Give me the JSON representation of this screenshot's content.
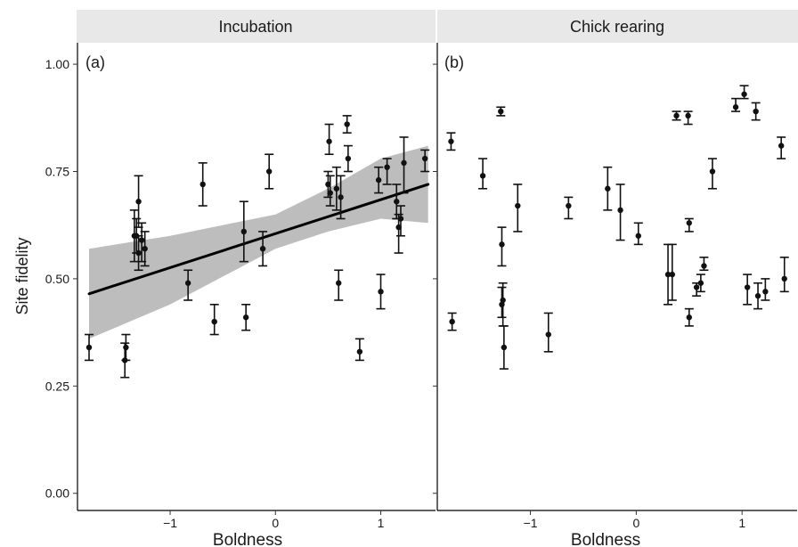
{
  "chart_data": [
    {
      "type": "scatter",
      "panel_strip": "Incubation",
      "tag": "(a)",
      "xlabel": "Boldness",
      "ylabel": "Site fidelity",
      "xlim": [
        -1.88,
        1.52
      ],
      "ylim": [
        -0.04,
        1.05
      ],
      "x_ticks": [
        -1,
        0,
        1
      ],
      "x_tick_labels": [
        "−1",
        "0",
        "1"
      ],
      "y_ticks": [
        0.0,
        0.25,
        0.5,
        0.75,
        1.0
      ],
      "y_tick_labels": [
        "0.00",
        "0.25",
        "0.50",
        "0.75",
        "1.00"
      ],
      "grid": false,
      "points": [
        {
          "x": -1.77,
          "y": 0.34,
          "lo": 0.31,
          "hi": 0.37
        },
        {
          "x": -1.43,
          "y": 0.31,
          "lo": 0.27,
          "hi": 0.35
        },
        {
          "x": -1.42,
          "y": 0.34,
          "lo": 0.31,
          "hi": 0.37
        },
        {
          "x": -1.34,
          "y": 0.6,
          "lo": 0.54,
          "hi": 0.66
        },
        {
          "x": -1.32,
          "y": 0.6,
          "lo": 0.56,
          "hi": 0.64
        },
        {
          "x": -1.3,
          "y": 0.68,
          "lo": 0.62,
          "hi": 0.74
        },
        {
          "x": -1.3,
          "y": 0.56,
          "lo": 0.52,
          "hi": 0.6
        },
        {
          "x": -1.27,
          "y": 0.59,
          "lo": 0.54,
          "hi": 0.63
        },
        {
          "x": -1.24,
          "y": 0.57,
          "lo": 0.53,
          "hi": 0.61
        },
        {
          "x": -0.83,
          "y": 0.49,
          "lo": 0.45,
          "hi": 0.52
        },
        {
          "x": -0.69,
          "y": 0.72,
          "lo": 0.67,
          "hi": 0.77
        },
        {
          "x": -0.58,
          "y": 0.4,
          "lo": 0.37,
          "hi": 0.44
        },
        {
          "x": -0.3,
          "y": 0.61,
          "lo": 0.54,
          "hi": 0.68
        },
        {
          "x": -0.28,
          "y": 0.41,
          "lo": 0.38,
          "hi": 0.44
        },
        {
          "x": -0.12,
          "y": 0.57,
          "lo": 0.53,
          "hi": 0.61
        },
        {
          "x": -0.06,
          "y": 0.75,
          "lo": 0.71,
          "hi": 0.79
        },
        {
          "x": 0.5,
          "y": 0.72,
          "lo": 0.69,
          "hi": 0.75
        },
        {
          "x": 0.51,
          "y": 0.82,
          "lo": 0.79,
          "hi": 0.86
        },
        {
          "x": 0.52,
          "y": 0.7,
          "lo": 0.67,
          "hi": 0.74
        },
        {
          "x": 0.58,
          "y": 0.71,
          "lo": 0.66,
          "hi": 0.76
        },
        {
          "x": 0.6,
          "y": 0.49,
          "lo": 0.45,
          "hi": 0.52
        },
        {
          "x": 0.62,
          "y": 0.69,
          "lo": 0.64,
          "hi": 0.74
        },
        {
          "x": 0.68,
          "y": 0.86,
          "lo": 0.84,
          "hi": 0.88
        },
        {
          "x": 0.69,
          "y": 0.78,
          "lo": 0.75,
          "hi": 0.81
        },
        {
          "x": 0.8,
          "y": 0.33,
          "lo": 0.31,
          "hi": 0.36
        },
        {
          "x": 0.98,
          "y": 0.73,
          "lo": 0.7,
          "hi": 0.76
        },
        {
          "x": 1.0,
          "y": 0.47,
          "lo": 0.43,
          "hi": 0.51
        },
        {
          "x": 1.06,
          "y": 0.76,
          "lo": 0.72,
          "hi": 0.78
        },
        {
          "x": 1.15,
          "y": 0.68,
          "lo": 0.64,
          "hi": 0.72
        },
        {
          "x": 1.17,
          "y": 0.62,
          "lo": 0.56,
          "hi": 0.65
        },
        {
          "x": 1.19,
          "y": 0.64,
          "lo": 0.6,
          "hi": 0.67
        },
        {
          "x": 1.22,
          "y": 0.77,
          "lo": 0.7,
          "hi": 0.83
        },
        {
          "x": 1.42,
          "y": 0.78,
          "lo": 0.75,
          "hi": 0.8
        }
      ],
      "fit": {
        "x": [
          -1.77,
          1.45
        ],
        "y": [
          0.465,
          0.72
        ]
      },
      "ci_band": {
        "x": [
          -1.77,
          -1.0,
          0.0,
          0.5,
          1.0,
          1.45
        ],
        "lo": [
          0.36,
          0.44,
          0.57,
          0.61,
          0.64,
          0.63
        ],
        "hi": [
          0.57,
          0.6,
          0.65,
          0.71,
          0.78,
          0.81
        ]
      }
    },
    {
      "type": "scatter",
      "panel_strip": "Chick rearing",
      "tag": "(b)",
      "xlabel": "Boldness",
      "ylabel": "",
      "xlim": [
        -1.88,
        1.52
      ],
      "ylim": [
        -0.04,
        1.05
      ],
      "x_ticks": [
        -1,
        0,
        1
      ],
      "x_tick_labels": [
        "−1",
        "0",
        "1"
      ],
      "grid": false,
      "points": [
        {
          "x": -1.75,
          "y": 0.82,
          "lo": 0.8,
          "hi": 0.84
        },
        {
          "x": -1.74,
          "y": 0.4,
          "lo": 0.38,
          "hi": 0.42
        },
        {
          "x": -1.45,
          "y": 0.74,
          "lo": 0.71,
          "hi": 0.78
        },
        {
          "x": -1.28,
          "y": 0.89,
          "lo": 0.88,
          "hi": 0.9
        },
        {
          "x": -1.27,
          "y": 0.58,
          "lo": 0.53,
          "hi": 0.62
        },
        {
          "x": -1.27,
          "y": 0.44,
          "lo": 0.41,
          "hi": 0.48
        },
        {
          "x": -1.26,
          "y": 0.45,
          "lo": 0.39,
          "hi": 0.49
        },
        {
          "x": -1.25,
          "y": 0.34,
          "lo": 0.29,
          "hi": 0.39
        },
        {
          "x": -1.12,
          "y": 0.67,
          "lo": 0.61,
          "hi": 0.72
        },
        {
          "x": -0.83,
          "y": 0.37,
          "lo": 0.33,
          "hi": 0.42
        },
        {
          "x": -0.64,
          "y": 0.67,
          "lo": 0.64,
          "hi": 0.69
        },
        {
          "x": -0.27,
          "y": 0.71,
          "lo": 0.66,
          "hi": 0.76
        },
        {
          "x": -0.15,
          "y": 0.66,
          "lo": 0.59,
          "hi": 0.72
        },
        {
          "x": 0.02,
          "y": 0.6,
          "lo": 0.58,
          "hi": 0.63
        },
        {
          "x": 0.3,
          "y": 0.51,
          "lo": 0.44,
          "hi": 0.58
        },
        {
          "x": 0.34,
          "y": 0.51,
          "lo": 0.45,
          "hi": 0.58
        },
        {
          "x": 0.38,
          "y": 0.88,
          "lo": 0.87,
          "hi": 0.89
        },
        {
          "x": 0.49,
          "y": 0.88,
          "lo": 0.86,
          "hi": 0.89
        },
        {
          "x": 0.5,
          "y": 0.63,
          "lo": 0.61,
          "hi": 0.64
        },
        {
          "x": 0.5,
          "y": 0.41,
          "lo": 0.39,
          "hi": 0.43
        },
        {
          "x": 0.57,
          "y": 0.48,
          "lo": 0.46,
          "hi": 0.49
        },
        {
          "x": 0.61,
          "y": 0.49,
          "lo": 0.47,
          "hi": 0.51
        },
        {
          "x": 0.64,
          "y": 0.53,
          "lo": 0.52,
          "hi": 0.55
        },
        {
          "x": 0.72,
          "y": 0.75,
          "lo": 0.71,
          "hi": 0.78
        },
        {
          "x": 0.94,
          "y": 0.9,
          "lo": 0.89,
          "hi": 0.92
        },
        {
          "x": 1.02,
          "y": 0.93,
          "lo": 0.92,
          "hi": 0.95
        },
        {
          "x": 1.05,
          "y": 0.48,
          "lo": 0.44,
          "hi": 0.51
        },
        {
          "x": 1.13,
          "y": 0.89,
          "lo": 0.87,
          "hi": 0.91
        },
        {
          "x": 1.15,
          "y": 0.46,
          "lo": 0.43,
          "hi": 0.49
        },
        {
          "x": 1.22,
          "y": 0.47,
          "lo": 0.45,
          "hi": 0.5
        },
        {
          "x": 1.37,
          "y": 0.81,
          "lo": 0.78,
          "hi": 0.83
        },
        {
          "x": 1.4,
          "y": 0.5,
          "lo": 0.47,
          "hi": 0.55
        }
      ]
    }
  ],
  "colors": {
    "strip_fill": "#e8e8e8",
    "point": "#111111",
    "fit_line": "#000000",
    "ci_band": "#bdbdbd"
  }
}
